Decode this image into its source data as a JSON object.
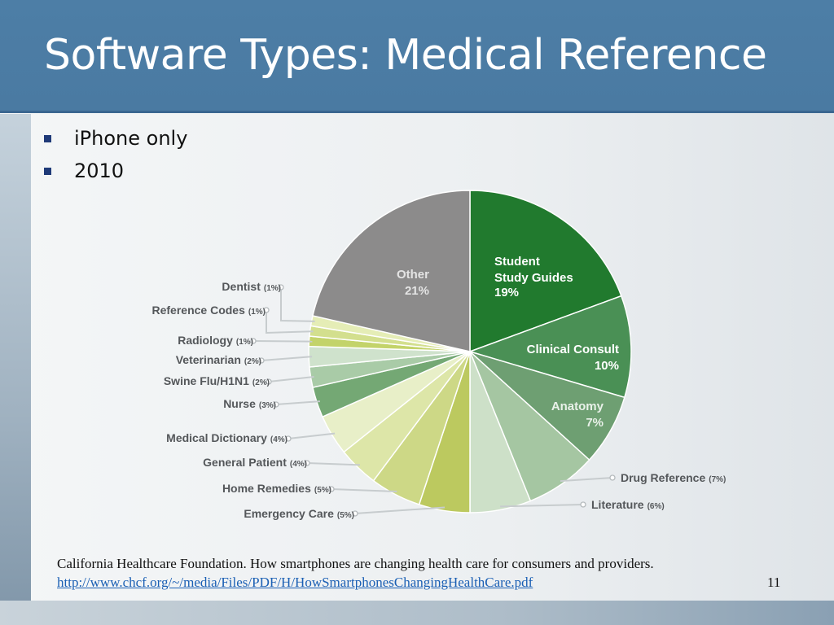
{
  "slide": {
    "title": "Software Types: Medical Reference",
    "bullets": [
      "iPhone only",
      "2010"
    ],
    "citation_text": "California Healthcare Foundation.  How smartphones are changing health care for consumers and providers.",
    "citation_link": "http://www.chcf.org/~/media/Files/PDF/H/HowSmartphonesChangingHealthCare.pdf",
    "page_number": "11"
  },
  "chart_data": {
    "type": "pie",
    "slices": [
      {
        "label": "Student Study Guides",
        "display": "19%",
        "value": 19,
        "color": "#217a2e",
        "label_style": "inside"
      },
      {
        "label": "Clinical Consult",
        "display": "10%",
        "value": 10,
        "color": "#4a9055",
        "label_style": "inside"
      },
      {
        "label": "Anatomy",
        "display": "7%",
        "value": 7,
        "color": "#6e9f72",
        "label_style": "inside"
      },
      {
        "label": "Drug Reference",
        "display": "(7%)",
        "value": 7,
        "color": "#a5c6a2",
        "label_style": "callout"
      },
      {
        "label": "Literature",
        "display": "(6%)",
        "value": 6,
        "color": "#cde0c8",
        "label_style": "callout"
      },
      {
        "label": "Emergency Care",
        "display": "(5%)",
        "value": 5,
        "color": "#bcc95f",
        "label_style": "callout"
      },
      {
        "label": "Home Remedies",
        "display": "(5%)",
        "value": 5,
        "color": "#cdd886",
        "label_style": "callout"
      },
      {
        "label": "General Patient",
        "display": "(4%)",
        "value": 4,
        "color": "#dde6a8",
        "label_style": "callout"
      },
      {
        "label": "Medical Dictionary",
        "display": "(4%)",
        "value": 4,
        "color": "#e8efc8",
        "label_style": "callout"
      },
      {
        "label": "Nurse",
        "display": "(3%)",
        "value": 3,
        "color": "#74a874",
        "label_style": "callout"
      },
      {
        "label": "Swine Flu/H1N1",
        "display": "(2%)",
        "value": 2,
        "color": "#a9cba7",
        "label_style": "callout"
      },
      {
        "label": "Veterinarian",
        "display": "(2%)",
        "value": 2,
        "color": "#cfe2cc",
        "label_style": "callout"
      },
      {
        "label": "Radiology",
        "display": "(1%)",
        "value": 1,
        "color": "#c3d36a",
        "label_style": "callout"
      },
      {
        "label": "Reference Codes",
        "display": "(1%)",
        "value": 1,
        "color": "#d3df8e",
        "label_style": "callout"
      },
      {
        "label": "Dentist",
        "display": "(1%)",
        "value": 1,
        "color": "#e5edb6",
        "label_style": "callout"
      },
      {
        "label": "Other",
        "display": "21%",
        "value": 21,
        "color": "#8c8b8b",
        "label_style": "inside"
      }
    ]
  }
}
